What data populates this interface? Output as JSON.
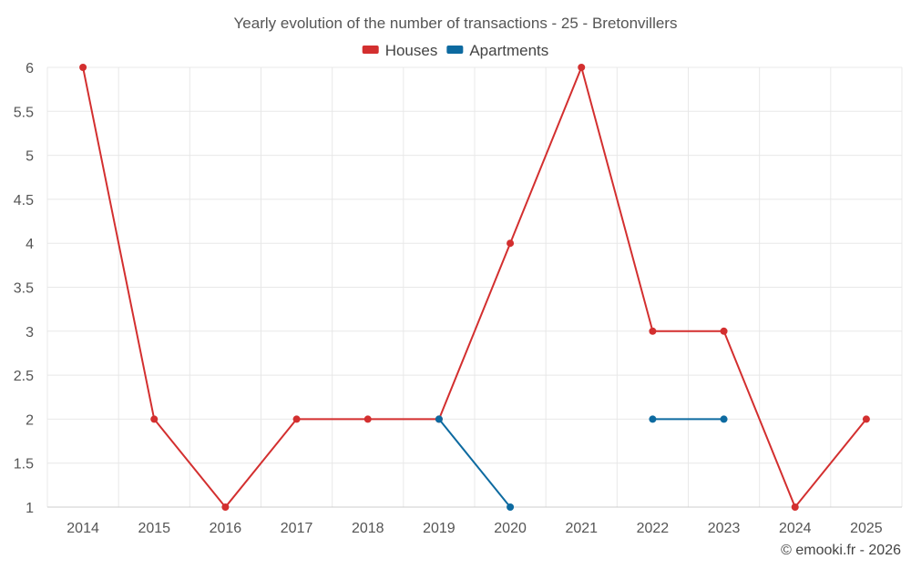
{
  "chart_data": {
    "type": "line",
    "title": "Yearly evolution of the number of transactions - 25 - Bretonvillers",
    "x": [
      "2014",
      "2015",
      "2016",
      "2017",
      "2018",
      "2019",
      "2020",
      "2021",
      "2022",
      "2023",
      "2024",
      "2025"
    ],
    "ylim": [
      1,
      6
    ],
    "yticks": [
      "1",
      "1.5",
      "2",
      "2.5",
      "3",
      "3.5",
      "4",
      "4.5",
      "5",
      "5.5",
      "6"
    ],
    "grid": true,
    "legend_position": "top-center",
    "series": [
      {
        "name": "Houses",
        "color": "#d32f2f",
        "values": [
          6,
          2,
          1,
          2,
          2,
          2,
          4,
          6,
          3,
          3,
          1,
          2
        ]
      },
      {
        "name": "Apartments",
        "color": "#0d6aa0",
        "values": [
          null,
          null,
          null,
          null,
          null,
          2,
          1,
          null,
          2,
          2,
          null,
          null
        ]
      }
    ]
  },
  "credit": "© emooki.fr - 2026"
}
